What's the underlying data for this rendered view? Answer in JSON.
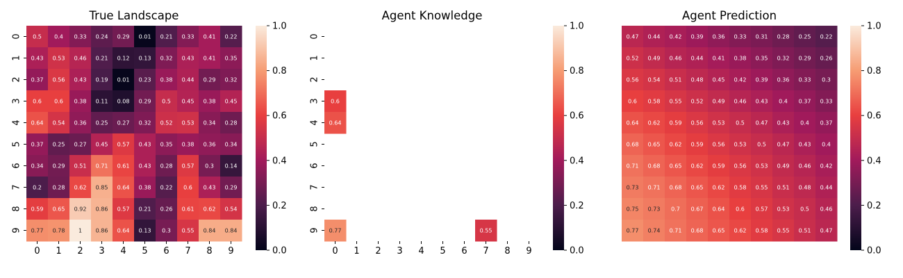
{
  "chart_data": [
    {
      "type": "heatmap",
      "title": "True Landscape",
      "show_x_ticks": true,
      "show_y_ticks": true,
      "x_tick_labels": [
        "0",
        "1",
        "2",
        "3",
        "4",
        "5",
        "6",
        "7",
        "8",
        "9"
      ],
      "y_tick_labels": [
        "0",
        "1",
        "2",
        "3",
        "4",
        "5",
        "6",
        "7",
        "8",
        "9"
      ],
      "colorbar": {
        "range": [
          0.0,
          1.0
        ],
        "tick_labels": [
          "0.0",
          "0.2",
          "0.4",
          "0.6",
          "0.8",
          "1.0"
        ],
        "tick_values": [
          0.0,
          0.2,
          0.4,
          0.6,
          0.8,
          1.0
        ]
      },
      "values": [
        [
          0.5,
          0.4,
          0.33,
          0.24,
          0.29,
          0.01,
          0.21,
          0.33,
          0.41,
          0.22
        ],
        [
          0.43,
          0.53,
          0.46,
          0.21,
          0.12,
          0.13,
          0.32,
          0.43,
          0.41,
          0.35
        ],
        [
          0.37,
          0.56,
          0.43,
          0.19,
          0.01,
          0.23,
          0.38,
          0.44,
          0.29,
          0.32
        ],
        [
          0.6,
          0.6,
          0.38,
          0.11,
          0.08,
          0.29,
          0.5,
          0.45,
          0.38,
          0.45
        ],
        [
          0.64,
          0.54,
          0.36,
          0.25,
          0.27,
          0.32,
          0.52,
          0.53,
          0.34,
          0.28
        ],
        [
          0.37,
          0.25,
          0.27,
          0.45,
          0.57,
          0.43,
          0.35,
          0.38,
          0.36,
          0.34
        ],
        [
          0.34,
          0.29,
          0.51,
          0.71,
          0.61,
          0.43,
          0.28,
          0.57,
          0.3,
          0.14
        ],
        [
          0.2,
          0.28,
          0.62,
          0.85,
          0.64,
          0.38,
          0.22,
          0.6,
          0.43,
          0.29
        ],
        [
          0.59,
          0.65,
          0.92,
          0.86,
          0.57,
          0.21,
          0.26,
          0.61,
          0.62,
          0.54
        ],
        [
          0.77,
          0.78,
          1,
          0.86,
          0.64,
          0.13,
          0.3,
          0.55,
          0.84,
          0.84
        ]
      ]
    },
    {
      "type": "heatmap",
      "title": "Agent Knowledge",
      "show_x_ticks": true,
      "show_y_ticks": true,
      "x_tick_labels": [
        "0",
        "1",
        "2",
        "3",
        "4",
        "5",
        "6",
        "7",
        "8",
        "9"
      ],
      "y_tick_labels": [
        "0",
        "1",
        "2",
        "3",
        "4",
        "5",
        "6",
        "7",
        "8",
        "9"
      ],
      "colorbar": {
        "range": [
          0.0,
          1.0
        ],
        "tick_labels": [
          "0.0",
          "0.2",
          "0.4",
          "0.6",
          "0.8",
          "1.0"
        ],
        "tick_values": [
          0.0,
          0.2,
          0.4,
          0.6,
          0.8,
          1.0
        ]
      },
      "values": [
        [
          null,
          null,
          null,
          null,
          null,
          null,
          null,
          null,
          null,
          null
        ],
        [
          null,
          null,
          null,
          null,
          null,
          null,
          null,
          null,
          null,
          null
        ],
        [
          null,
          null,
          null,
          null,
          null,
          null,
          null,
          null,
          null,
          null
        ],
        [
          0.6,
          null,
          null,
          null,
          null,
          null,
          null,
          null,
          null,
          null
        ],
        [
          0.64,
          null,
          null,
          null,
          null,
          null,
          null,
          null,
          null,
          null
        ],
        [
          null,
          null,
          null,
          null,
          null,
          null,
          null,
          null,
          null,
          null
        ],
        [
          null,
          null,
          null,
          null,
          null,
          null,
          null,
          null,
          null,
          null
        ],
        [
          null,
          null,
          null,
          null,
          null,
          null,
          null,
          null,
          null,
          null
        ],
        [
          null,
          null,
          null,
          null,
          null,
          null,
          null,
          null,
          null,
          null
        ],
        [
          0.77,
          null,
          null,
          null,
          null,
          null,
          null,
          0.55,
          null,
          null
        ]
      ]
    },
    {
      "type": "heatmap",
      "title": "Agent Prediction",
      "show_x_ticks": false,
      "show_y_ticks": false,
      "x_tick_labels": [],
      "y_tick_labels": [],
      "colorbar": {
        "range": [
          0.0,
          1.0
        ],
        "tick_labels": [
          "0.0",
          "0.2",
          "0.4",
          "0.6",
          "0.8",
          "1.0"
        ],
        "tick_values": [
          0.0,
          0.2,
          0.4,
          0.6,
          0.8,
          1.0
        ]
      },
      "values": [
        [
          0.47,
          0.44,
          0.42,
          0.39,
          0.36,
          0.33,
          0.31,
          0.28,
          0.25,
          0.22
        ],
        [
          0.52,
          0.49,
          0.46,
          0.44,
          0.41,
          0.38,
          0.35,
          0.32,
          0.29,
          0.26
        ],
        [
          0.56,
          0.54,
          0.51,
          0.48,
          0.45,
          0.42,
          0.39,
          0.36,
          0.33,
          0.3
        ],
        [
          0.6,
          0.58,
          0.55,
          0.52,
          0.49,
          0.46,
          0.43,
          0.4,
          0.37,
          0.33
        ],
        [
          0.64,
          0.62,
          0.59,
          0.56,
          0.53,
          0.5,
          0.47,
          0.43,
          0.4,
          0.37
        ],
        [
          0.68,
          0.65,
          0.62,
          0.59,
          0.56,
          0.53,
          0.5,
          0.47,
          0.43,
          0.4
        ],
        [
          0.71,
          0.68,
          0.65,
          0.62,
          0.59,
          0.56,
          0.53,
          0.49,
          0.46,
          0.42
        ],
        [
          0.73,
          0.71,
          0.68,
          0.65,
          0.62,
          0.58,
          0.55,
          0.51,
          0.48,
          0.44
        ],
        [
          0.75,
          0.73,
          0.7,
          0.67,
          0.64,
          0.6,
          0.57,
          0.53,
          0.5,
          0.46
        ],
        [
          0.77,
          0.74,
          0.71,
          0.68,
          0.65,
          0.62,
          0.58,
          0.55,
          0.51,
          0.47
        ]
      ]
    }
  ],
  "colormap_stops": [
    "#03051a",
    "#4c1d4b",
    "#a11a5b",
    "#e83f3f",
    "#f69c73",
    "#faebdd"
  ]
}
